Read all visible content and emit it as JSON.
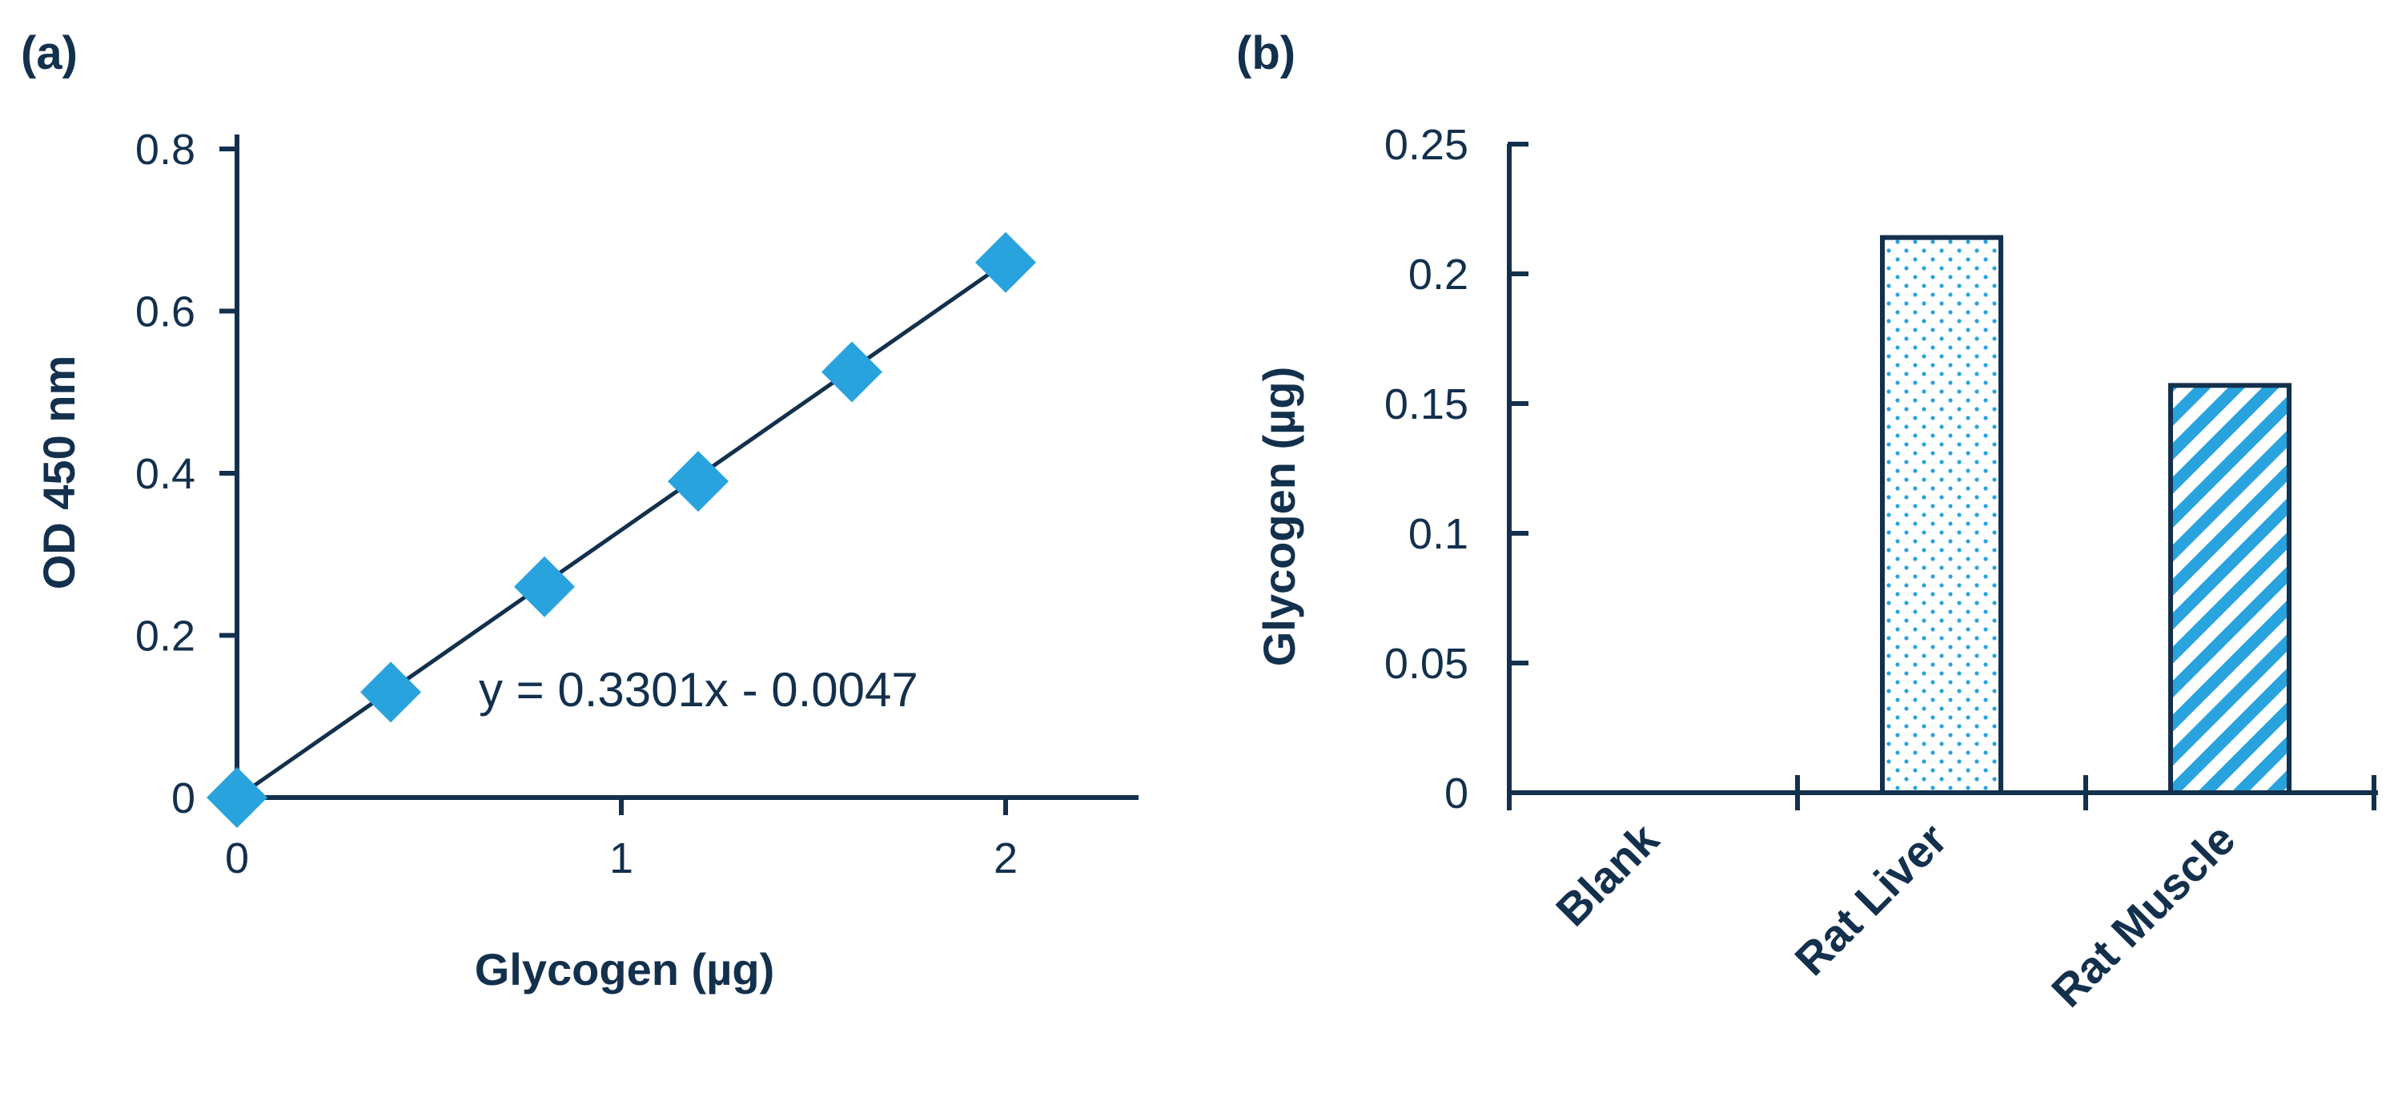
{
  "colors": {
    "ink": "#13304d",
    "accent": "#29a3dd",
    "background": "#ffffff"
  },
  "chart_data": [
    {
      "panel_label": "(a)",
      "type": "scatter",
      "x": [
        0,
        0.4,
        0.8,
        1.2,
        1.6,
        2.0
      ],
      "y": [
        0.0,
        0.13,
        0.26,
        0.39,
        0.525,
        0.66
      ],
      "marker": "diamond",
      "trendline": {
        "slope": 0.3301,
        "intercept": -0.0047,
        "equation": "y = 0.3301x - 0.0047"
      },
      "xlabel": "Glycogen (µg)",
      "ylabel": "OD 450 nm",
      "xlim": [
        0,
        2.35
      ],
      "ylim": [
        0,
        0.8
      ],
      "xticks": [
        0,
        1,
        2
      ],
      "xtick_labels": [
        "0",
        "1",
        "2"
      ],
      "yticks": [
        0,
        0.2,
        0.4,
        0.6,
        0.8
      ],
      "ytick_labels": [
        "0",
        "0.2",
        "0.4",
        "0.6",
        "0.8"
      ],
      "grid": false
    },
    {
      "panel_label": "(b)",
      "type": "bar",
      "categories": [
        "Blank",
        "Rat Liver",
        "Rat Muscle"
      ],
      "values": [
        0,
        0.214,
        0.157
      ],
      "fills": [
        "none",
        "dotted",
        "diagonal-stripes"
      ],
      "ylabel": "Glycogen (µg)",
      "ylim": [
        0,
        0.25
      ],
      "yticks": [
        0,
        0.05,
        0.1,
        0.15,
        0.2,
        0.25
      ],
      "ytick_labels": [
        "0",
        "0.05",
        "0.1",
        "0.15",
        "0.2",
        "0.25"
      ],
      "grid": false
    }
  ]
}
